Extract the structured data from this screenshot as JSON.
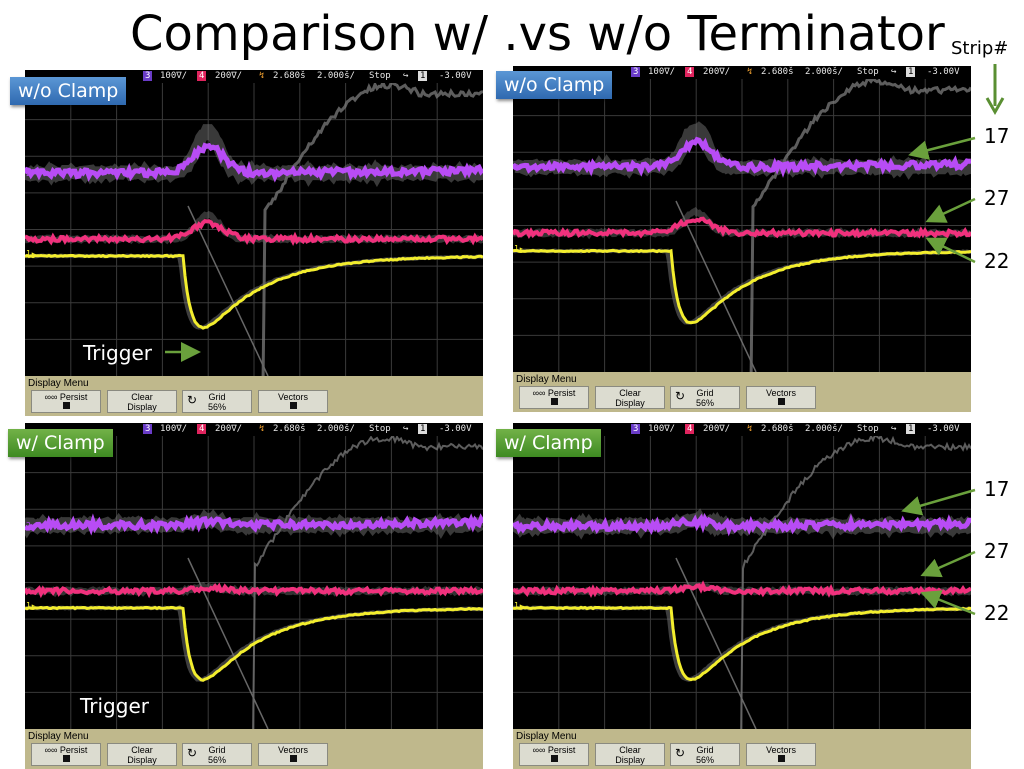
{
  "slide": {
    "title": "Comparison w/ .vs w/o Terminator",
    "strip_header": "Strip#",
    "strip_numbers_top": [
      "17",
      "27",
      "22"
    ],
    "strip_numbers_bottom": [
      "17",
      "27",
      "22"
    ]
  },
  "scope": {
    "status": {
      "ch3_num": "3",
      "ch3_scale": "100∇/",
      "ch4_num": "4",
      "ch4_scale": "200∇/",
      "delay": "2.680š",
      "timebase": "2.000š/",
      "run_state": "Stop",
      "trig_channel": "1",
      "trig_level": "-3.00V"
    },
    "menu": {
      "title": "Display Menu",
      "persist": "∞∞ Persist",
      "clear_line1": "Clear",
      "clear_line2": "Display",
      "grid_label": "Grid",
      "grid_value": "56%",
      "vectors": "Vectors"
    }
  },
  "panels": [
    {
      "tag": "w/o Clamp",
      "tag_color": "#3a7cc4",
      "trigger_label": "Trigger"
    },
    {
      "tag": "w/o Clamp",
      "tag_color": "#3a7cc4"
    },
    {
      "tag": "w/ Clamp",
      "tag_color": "#4a9a2c",
      "trigger_label": "Trigger"
    },
    {
      "tag": "w/ Clamp",
      "tag_color": "#4a9a2c"
    }
  ],
  "colors": {
    "trace_purple": "#b84cf5",
    "trace_pink": "#f0317d",
    "trace_yellow": "#f3ee2e",
    "persistence_gray": "#7a7a7a",
    "menu_bg": "#bfb88c",
    "arrow_green": "#5a8f32"
  }
}
